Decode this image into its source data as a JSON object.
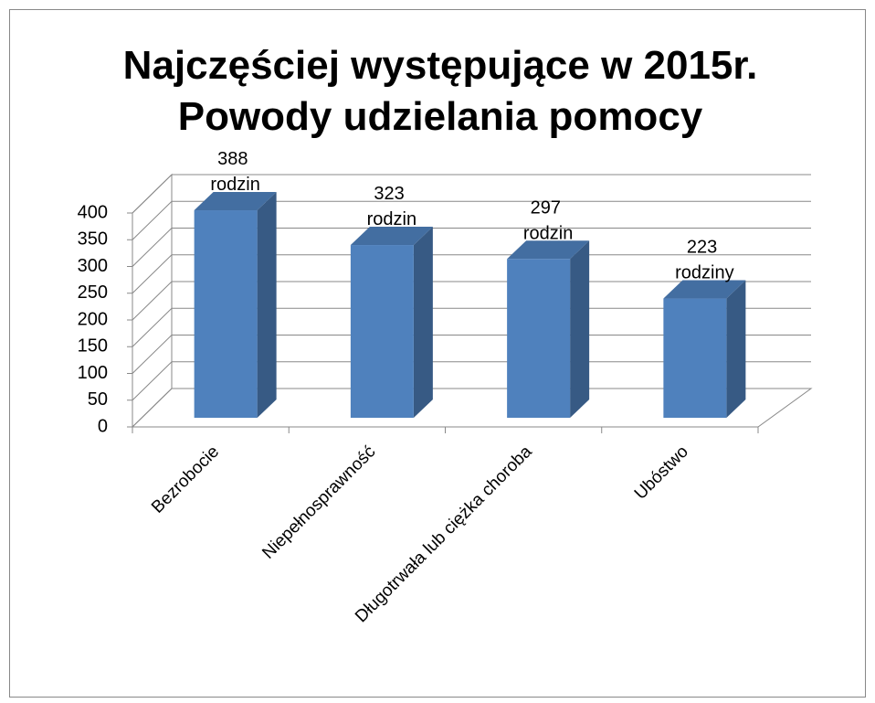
{
  "chart_data": {
    "type": "bar3d",
    "title": [
      "Najczęściej występujące w 2015r.",
      "Powody udzielania pomocy"
    ],
    "categories": [
      "Bezrobocie",
      "Niepełnosprawność",
      "Długotrwała lub ciężka choroba",
      "Ubóstwo"
    ],
    "values": [
      388,
      323,
      297,
      223
    ],
    "value_labels": [
      "388 rodzin",
      "323 rodzin",
      "297 rodzin",
      "223 rodziny"
    ],
    "color": "#4f81bd",
    "ylim": [
      0,
      400
    ],
    "yticks": [
      0,
      50,
      100,
      150,
      200,
      250,
      300,
      350,
      400
    ],
    "grid": true
  }
}
